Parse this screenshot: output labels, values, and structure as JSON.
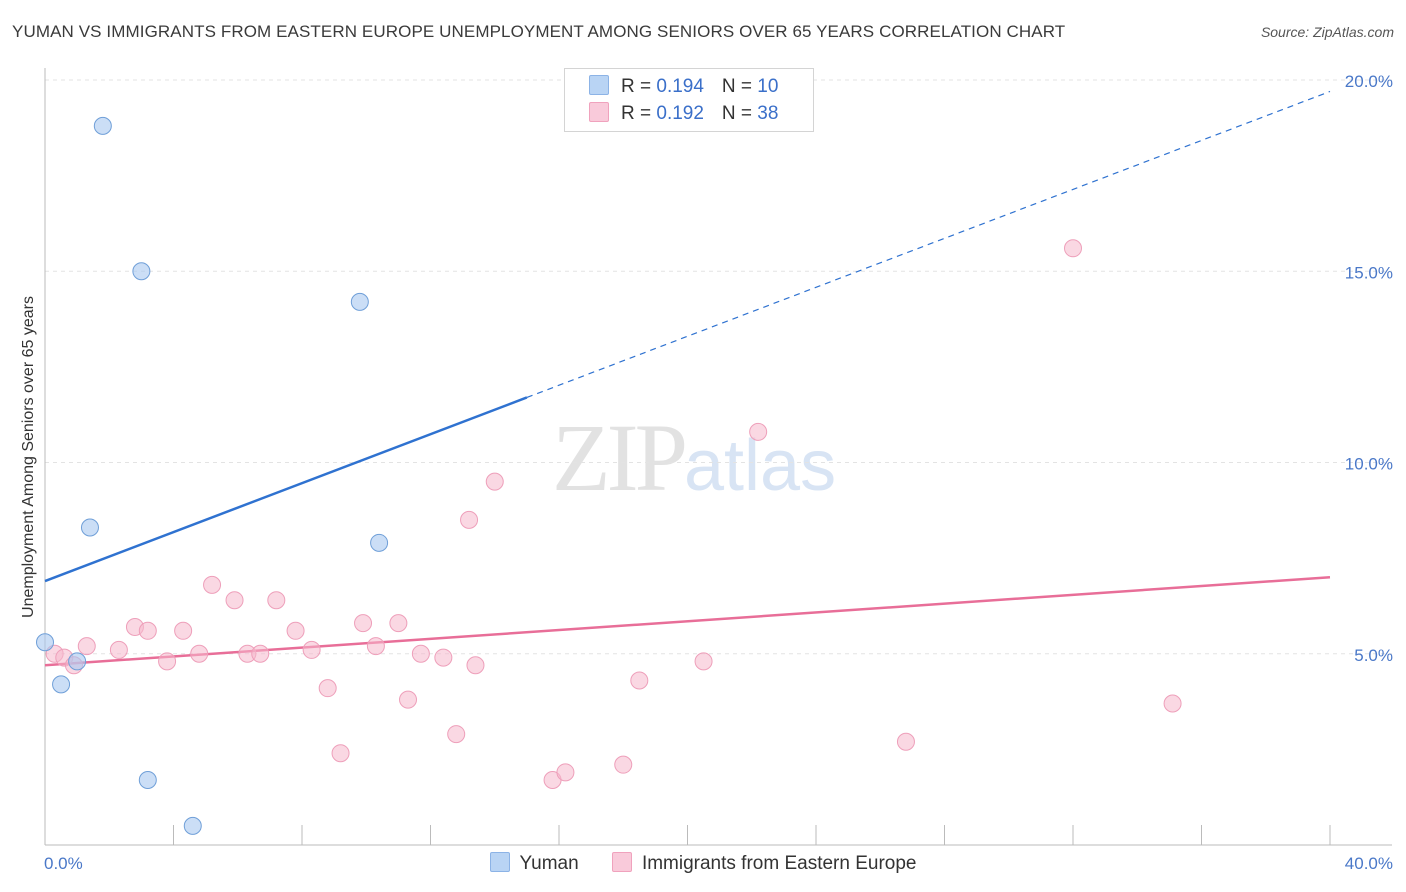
{
  "header": {
    "title": "YUMAN VS IMMIGRANTS FROM EASTERN EUROPE UNEMPLOYMENT AMONG SENIORS OVER 65 YEARS CORRELATION CHART",
    "source": "Source: ZipAtlas.com"
  },
  "watermark": {
    "zip": "ZIP",
    "atlas": "atlas"
  },
  "legend": {
    "rows": [
      {
        "r_label": "R = ",
        "r_value": "0.194",
        "n_label": "N = ",
        "n_value": "10"
      },
      {
        "r_label": "R = ",
        "r_value": "0.192",
        "n_label": "N = ",
        "n_value": "38"
      }
    ]
  },
  "chart_data": {
    "type": "scatter",
    "title": "YUMAN VS IMMIGRANTS FROM EASTERN EUROPE UNEMPLOYMENT AMONG SENIORS OVER 65 YEARS CORRELATION CHART",
    "xlabel": "",
    "ylabel": "Unemployment Among Seniors over 65 years",
    "xlim": [
      0,
      40
    ],
    "ylim": [
      0,
      20
    ],
    "x_tick_labels": [
      "0.0%",
      "40.0%"
    ],
    "y_ticks": [
      5,
      10,
      15,
      20
    ],
    "y_tick_labels": [
      "5.0%",
      "10.0%",
      "15.0%",
      "20.0%"
    ],
    "grid": true,
    "colors": {
      "yuman": "#a8c8f0",
      "yuman_line": "#2f72d0",
      "eastern": "#f6b8cc",
      "eastern_line": "#e86e98"
    },
    "series": [
      {
        "name": "Yuman",
        "r": 0.194,
        "n": 10,
        "points": [
          [
            0.0,
            5.3
          ],
          [
            0.5,
            4.2
          ],
          [
            1.0,
            4.8
          ],
          [
            1.4,
            8.3
          ],
          [
            1.8,
            18.8
          ],
          [
            3.0,
            15.0
          ],
          [
            3.2,
            1.7
          ],
          [
            4.6,
            0.5
          ],
          [
            9.8,
            14.2
          ],
          [
            10.4,
            7.9
          ]
        ],
        "trend": {
          "solid": [
            [
              0,
              6.9
            ],
            [
              15,
              11.7
            ]
          ],
          "dashed": [
            [
              15,
              11.7
            ],
            [
              40,
              19.7
            ]
          ]
        }
      },
      {
        "name": "Immigrants from Eastern Europe",
        "r": 0.192,
        "n": 38,
        "points": [
          [
            0.3,
            5.0
          ],
          [
            0.6,
            4.9
          ],
          [
            0.9,
            4.7
          ],
          [
            1.3,
            5.2
          ],
          [
            2.3,
            5.1
          ],
          [
            2.8,
            5.7
          ],
          [
            3.2,
            5.6
          ],
          [
            3.8,
            4.8
          ],
          [
            4.3,
            5.6
          ],
          [
            4.8,
            5.0
          ],
          [
            5.2,
            6.8
          ],
          [
            5.9,
            6.4
          ],
          [
            6.3,
            5.0
          ],
          [
            6.7,
            5.0
          ],
          [
            7.2,
            6.4
          ],
          [
            7.8,
            5.6
          ],
          [
            8.3,
            5.1
          ],
          [
            8.8,
            4.1
          ],
          [
            9.2,
            2.4
          ],
          [
            9.9,
            5.8
          ],
          [
            10.3,
            5.2
          ],
          [
            11.0,
            5.8
          ],
          [
            11.3,
            3.8
          ],
          [
            11.7,
            5.0
          ],
          [
            12.4,
            4.9
          ],
          [
            12.8,
            2.9
          ],
          [
            13.2,
            8.5
          ],
          [
            13.4,
            4.7
          ],
          [
            14.0,
            9.5
          ],
          [
            15.8,
            1.7
          ],
          [
            16.2,
            1.9
          ],
          [
            18.0,
            2.1
          ],
          [
            18.5,
            4.3
          ],
          [
            20.5,
            4.8
          ],
          [
            22.2,
            10.8
          ],
          [
            26.8,
            2.7
          ],
          [
            32.0,
            15.6
          ],
          [
            35.1,
            3.7
          ]
        ],
        "trend": {
          "solid": [
            [
              0,
              4.7
            ],
            [
              40,
              7.0
            ]
          ]
        }
      }
    ]
  }
}
